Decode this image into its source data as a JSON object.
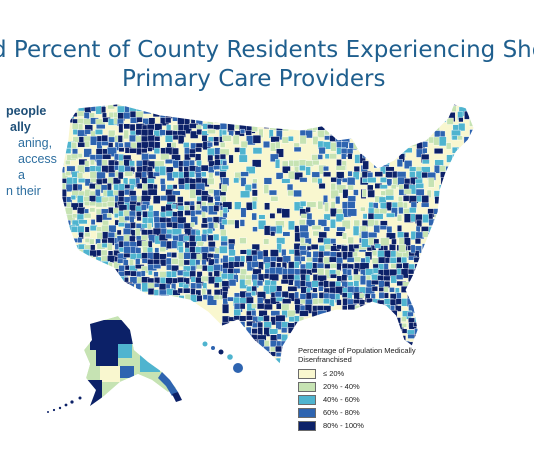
{
  "title_line1": "d Percent of County Residents Experiencing Shortag",
  "title_line2": "Primary Care Providers",
  "side_text": {
    "line1": "people",
    "line2": "ally",
    "line3": "aning,",
    "line4": "access",
    "line5": "a",
    "line6": "n their"
  },
  "legend": {
    "title": "Percentage of Population Medically Disenfranchised",
    "items": [
      {
        "label": "≤ 20%",
        "color": "#f9f7cf"
      },
      {
        "label": "20% - 40%",
        "color": "#c6e3b3"
      },
      {
        "label": "40% - 60%",
        "color": "#4fb4cf"
      },
      {
        "label": "60% - 80%",
        "color": "#2e64b0"
      },
      {
        "label": "80% - 100%",
        "color": "#0c2168"
      }
    ]
  },
  "colors": {
    "title": "#1f5f8e",
    "county_border": "#ffffff",
    "background": "#ffffff"
  }
}
